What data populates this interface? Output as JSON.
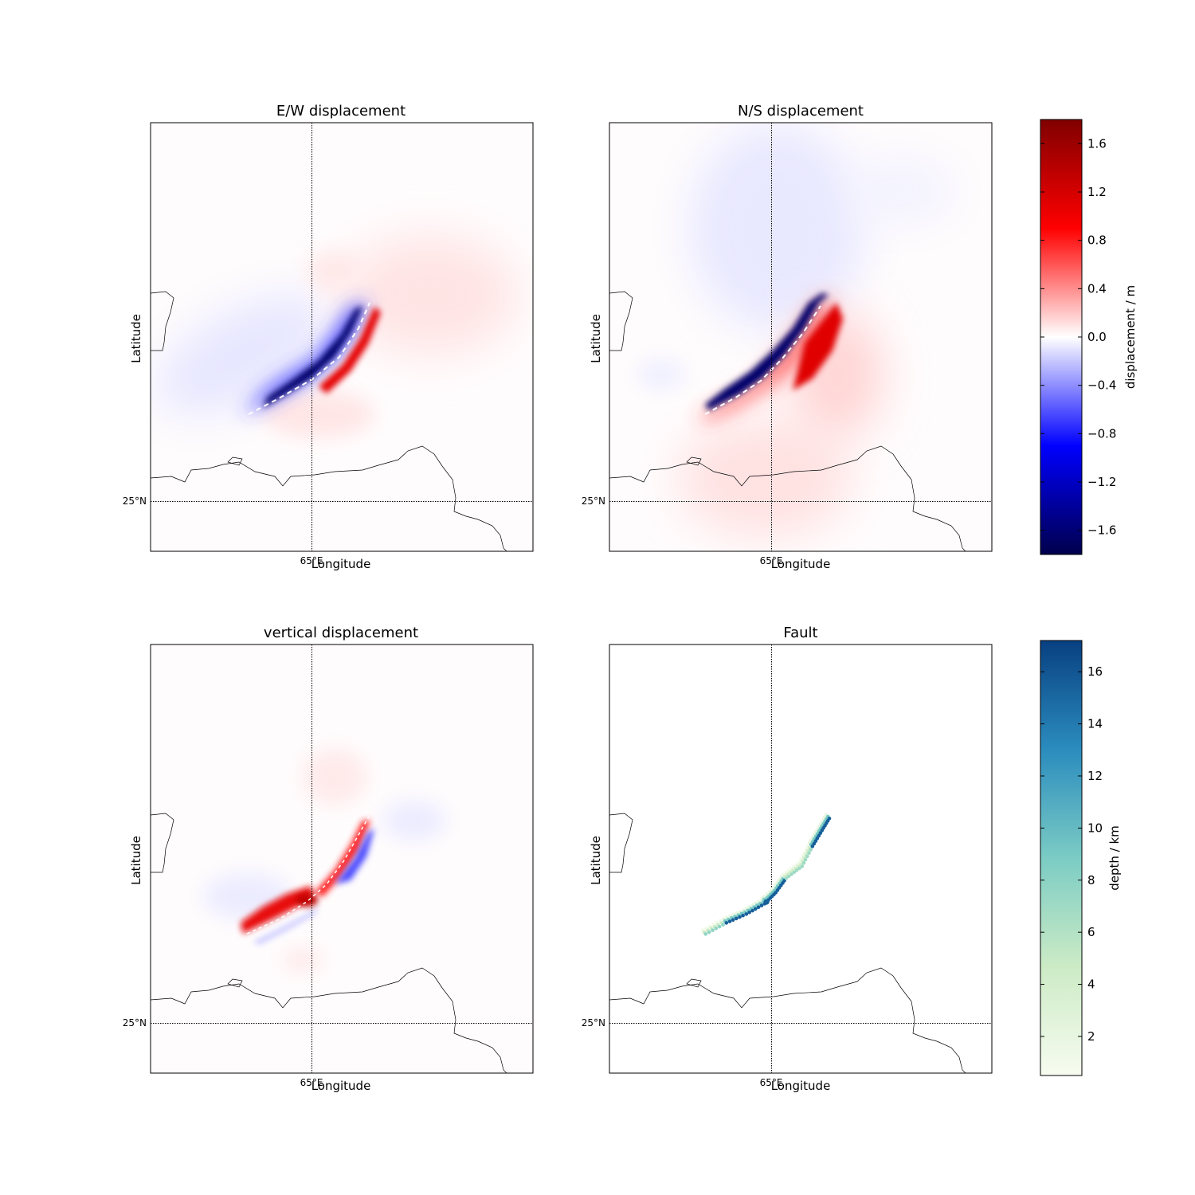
{
  "chart_data": [
    {
      "type": "heatmap",
      "title": "E/W displacement",
      "xlabel": "Longitude",
      "ylabel": "Latitude",
      "lon_label": "65°E",
      "lat_label": "25°N",
      "colormap": "seismic",
      "colorbar": "displacement",
      "pattern": "ew"
    },
    {
      "type": "heatmap",
      "title": "N/S displacement",
      "xlabel": "Longitude",
      "ylabel": "Latitude",
      "lon_label": "65°E",
      "lat_label": "25°N",
      "colormap": "seismic",
      "colorbar": "displacement",
      "pattern": "ns"
    },
    {
      "type": "heatmap",
      "title": "vertical displacement",
      "xlabel": "Longitude",
      "ylabel": "Latitude",
      "lon_label": "65°E",
      "lat_label": "25°N",
      "colormap": "seismic",
      "colorbar": "displacement",
      "pattern": "vert"
    },
    {
      "type": "scatter",
      "title": "Fault",
      "xlabel": "Longitude",
      "ylabel": "Latitude",
      "lon_label": "65°E",
      "lat_label": "25°N",
      "colormap": "GnBu",
      "colorbar": "depth",
      "note": "fault patch centres coloured by depth (km)"
    }
  ],
  "colorbars": {
    "displacement": {
      "label": "displacement / m",
      "range": [
        -1.8,
        1.8
      ],
      "ticks": [
        "1.6",
        "1.2",
        "0.8",
        "0.4",
        "0.0",
        "−0.4",
        "−0.8",
        "−1.2",
        "−1.6"
      ],
      "tick_values": [
        1.6,
        1.2,
        0.8,
        0.4,
        0.0,
        -0.4,
        -0.8,
        -1.2,
        -1.6
      ],
      "colors": [
        "#00004c",
        "#0000ff",
        "#ffffff",
        "#ff0000",
        "#800000"
      ]
    },
    "depth": {
      "label": "depth / km",
      "range": [
        0.5,
        17.2
      ],
      "ticks": [
        "16",
        "14",
        "12",
        "10",
        "8",
        "6",
        "4",
        "2"
      ],
      "tick_values": [
        16,
        14,
        12,
        10,
        8,
        6,
        4,
        2
      ],
      "colors": [
        "#f7fcf0",
        "#ccebc5",
        "#7bccc4",
        "#2b8cbe",
        "#084081"
      ]
    }
  }
}
